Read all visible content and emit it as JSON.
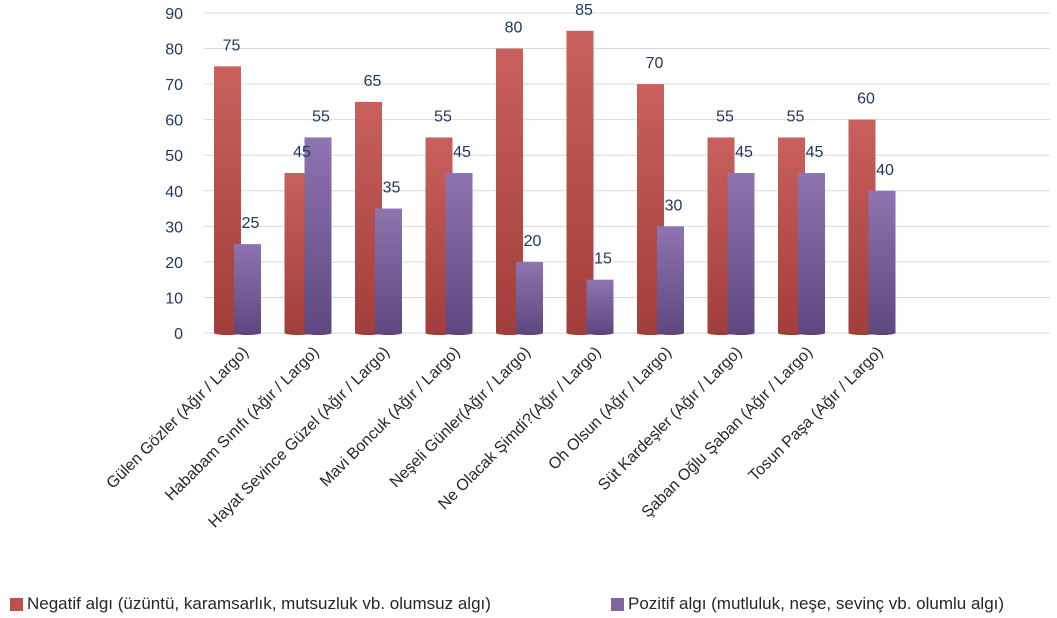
{
  "chart_data": {
    "type": "bar",
    "categories": [
      "Gülen Gözler (Ağır / Largo)",
      "Hababam Sınıfı (Ağır / Largo)",
      "Hayat Sevince Güzel (Ağır / Largo)",
      "Mavi Boncuk (Ağır / Largo)",
      "Neşeli Günler(Ağır / Largo)",
      "Ne Olacak Şimdi?(Ağır / Largo)",
      "Oh Olsun (Ağır / Largo)",
      "Süt Kardeşler (Ağır / Largo)",
      "Şaban Oğlu Şaban (Ağır / Largo)",
      "Tosun Paşa (Ağır / Largo)"
    ],
    "series": [
      {
        "name": "Negatif algı (üzüntü, karamsarlık, mutsuzluk vb. olumsuz algı)",
        "values": [
          75,
          45,
          65,
          55,
          80,
          85,
          70,
          55,
          55,
          60
        ],
        "color": "#C0504D"
      },
      {
        "name": "Pozitif algı (mutluluk, neşe, sevinç vb. olumlu algı)",
        "values": [
          25,
          55,
          35,
          45,
          20,
          15,
          30,
          45,
          45,
          40
        ],
        "color": "#8064A2"
      }
    ],
    "ylim": [
      0,
      90
    ],
    "yticks": [
      0,
      10,
      20,
      30,
      40,
      50,
      60,
      70,
      80,
      90
    ],
    "grid": true,
    "legend": "bottom",
    "data_labels": true,
    "tick_label_color": "#1F3864",
    "data_label_color": "#1F3864"
  }
}
